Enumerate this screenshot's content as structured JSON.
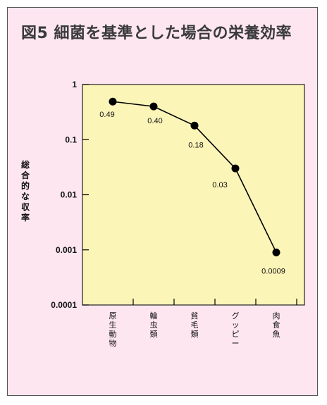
{
  "title": "図5 細菌を基準とした場合の栄養効率",
  "colors": {
    "background": "#fde6f0",
    "plot_area": "#fcf5b8",
    "line": "#000000",
    "marker": "#000000",
    "border": "#555555"
  },
  "chart_data": {
    "type": "line",
    "title": "図5 細菌を基準とした場合の栄養効率",
    "xlabel": "",
    "ylabel": "総合的な収率",
    "y_scale": "log",
    "ylim": [
      0.0001,
      1
    ],
    "y_ticks": [
      1,
      0.1,
      0.01,
      0.001,
      0.0001
    ],
    "y_tick_labels": [
      "1",
      "0.1",
      "0.01",
      "0.001",
      "0.0001"
    ],
    "categories": [
      "原生動物",
      "輪虫類",
      "貧毛類",
      "グッピー",
      "肉食魚"
    ],
    "values": [
      0.49,
      0.4,
      0.18,
      0.03,
      0.0009
    ],
    "data_labels": [
      "0.49",
      "0.40",
      "0.18",
      "0.03",
      "0.0009"
    ],
    "grid": false,
    "legend": "none"
  }
}
